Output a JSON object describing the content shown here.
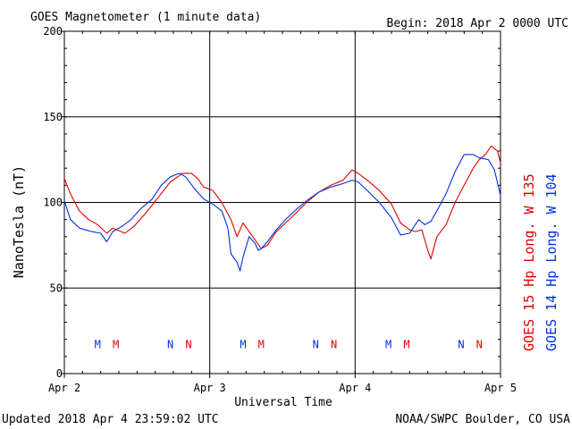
{
  "header": {
    "title": "GOES Magnetometer (1 minute data)",
    "begin": "Begin:  2018 Apr 2 0000 UTC"
  },
  "footer": {
    "updated": "Updated 2018 Apr  4 23:59:02 UTC",
    "credit": "NOAA/SWPC Boulder, CO USA"
  },
  "chart_data": {
    "type": "line",
    "title": "GOES Magnetometer (1 minute data)",
    "xlabel": "Universal Time",
    "ylabel": "NanoTesla (nT)",
    "ylim": [
      0,
      200
    ],
    "xlim": [
      0,
      72
    ],
    "x_unit": "hours since 2018 Apr 2 0000 UTC",
    "grid": true,
    "yticks": [
      0,
      50,
      100,
      150,
      200
    ],
    "ytick_labels": [
      "0",
      "50",
      "100",
      "150",
      "200"
    ],
    "xticks": [
      0,
      24,
      48,
      72
    ],
    "xtick_labels": [
      "Apr 2",
      "Apr 3",
      "Apr 4",
      "Apr 5"
    ],
    "series": [
      {
        "name": "GOES 15 Hp  Long. W 135",
        "color": "#e00000",
        "points": [
          [
            0,
            114
          ],
          [
            1,
            105
          ],
          [
            2.5,
            95
          ],
          [
            4,
            90
          ],
          [
            5.5,
            87
          ],
          [
            7,
            82
          ],
          [
            8,
            85
          ],
          [
            10,
            82
          ],
          [
            11.5,
            86
          ],
          [
            13.5,
            94
          ],
          [
            15.5,
            103
          ],
          [
            17.5,
            112
          ],
          [
            19.5,
            117
          ],
          [
            21,
            117
          ],
          [
            22,
            114
          ],
          [
            23,
            109
          ],
          [
            24.5,
            107
          ],
          [
            26,
            100
          ],
          [
            27.5,
            90
          ],
          [
            28.5,
            80
          ],
          [
            29.5,
            88
          ],
          [
            30.5,
            83
          ],
          [
            31.5,
            78
          ],
          [
            32.5,
            73
          ],
          [
            33.5,
            75
          ],
          [
            35,
            83
          ],
          [
            36.5,
            88
          ],
          [
            38,
            93
          ],
          [
            40,
            100
          ],
          [
            42,
            106
          ],
          [
            44,
            110
          ],
          [
            46,
            113
          ],
          [
            47.5,
            119
          ],
          [
            48.5,
            117
          ],
          [
            50,
            113
          ],
          [
            52,
            107
          ],
          [
            54,
            99
          ],
          [
            55.5,
            88
          ],
          [
            57,
            84
          ],
          [
            58,
            83
          ],
          [
            59,
            84
          ],
          [
            60,
            72
          ],
          [
            60.5,
            67
          ],
          [
            61.5,
            80
          ],
          [
            63,
            87
          ],
          [
            64.5,
            100
          ],
          [
            66,
            110
          ],
          [
            67.5,
            120
          ],
          [
            68.5,
            125
          ],
          [
            69.5,
            128
          ],
          [
            70.5,
            133
          ],
          [
            71.5,
            130
          ],
          [
            72,
            123
          ]
        ]
      },
      {
        "name": "GOES 14 Hp  Long. W 104",
        "color": "#0030e0",
        "points": [
          [
            0,
            101
          ],
          [
            1,
            90
          ],
          [
            2.5,
            85
          ],
          [
            4.5,
            83
          ],
          [
            6,
            82
          ],
          [
            7,
            77
          ],
          [
            8,
            83
          ],
          [
            9.5,
            86
          ],
          [
            11,
            90
          ],
          [
            12.5,
            96
          ],
          [
            14.5,
            102
          ],
          [
            16,
            110
          ],
          [
            17.5,
            115
          ],
          [
            19,
            117
          ],
          [
            20,
            115
          ],
          [
            21.5,
            108
          ],
          [
            23,
            102
          ],
          [
            24.5,
            99
          ],
          [
            26,
            95
          ],
          [
            27,
            85
          ],
          [
            27.5,
            70
          ],
          [
            28.5,
            65
          ],
          [
            29,
            60
          ],
          [
            29.5,
            68
          ],
          [
            30.5,
            80
          ],
          [
            31.5,
            76
          ],
          [
            32,
            72
          ],
          [
            32.5,
            73
          ],
          [
            33.5,
            77
          ],
          [
            35,
            84
          ],
          [
            36.5,
            90
          ],
          [
            38,
            95
          ],
          [
            40,
            101
          ],
          [
            42,
            106
          ],
          [
            44,
            109
          ],
          [
            46,
            111
          ],
          [
            47.5,
            113
          ],
          [
            48.5,
            112
          ],
          [
            50,
            107
          ],
          [
            52,
            100
          ],
          [
            54,
            91
          ],
          [
            55.5,
            81
          ],
          [
            57,
            82
          ],
          [
            58.5,
            90
          ],
          [
            59.5,
            87
          ],
          [
            60.5,
            89
          ],
          [
            61.5,
            95
          ],
          [
            63,
            105
          ],
          [
            64.5,
            118
          ],
          [
            66,
            128
          ],
          [
            67.5,
            128
          ],
          [
            68.5,
            126
          ],
          [
            70,
            125
          ],
          [
            71,
            119
          ],
          [
            72,
            104
          ]
        ]
      }
    ],
    "markers": [
      {
        "label": "M",
        "x": 5.5,
        "color": "#0030e0"
      },
      {
        "label": "M",
        "x": 8.5,
        "color": "#e00000"
      },
      {
        "label": "N",
        "x": 17.5,
        "color": "#0030e0"
      },
      {
        "label": "N",
        "x": 20.5,
        "color": "#e00000"
      },
      {
        "label": "M",
        "x": 29.5,
        "color": "#0030e0"
      },
      {
        "label": "M",
        "x": 32.5,
        "color": "#e00000"
      },
      {
        "label": "N",
        "x": 41.5,
        "color": "#0030e0"
      },
      {
        "label": "N",
        "x": 44.5,
        "color": "#e00000"
      },
      {
        "label": "M",
        "x": 53.5,
        "color": "#0030e0"
      },
      {
        "label": "M",
        "x": 56.5,
        "color": "#e00000"
      },
      {
        "label": "N",
        "x": 65.5,
        "color": "#0030e0"
      },
      {
        "label": "N",
        "x": 68.5,
        "color": "#e00000"
      }
    ],
    "marker_y": 17
  }
}
